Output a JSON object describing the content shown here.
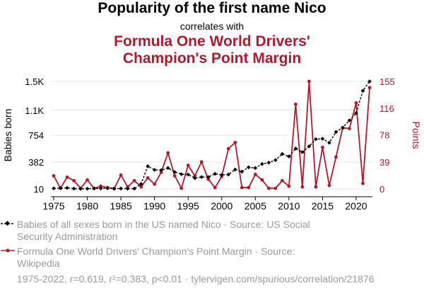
{
  "header": {
    "title": "Popularity of the first name Nico",
    "connector": "correlates with",
    "subtitle_line1": "Formula One World Drivers'",
    "subtitle_line2": "Champion's Point Margin"
  },
  "legend": {
    "series1": "Babies of all sexes born in the US named Nico · Source: US Social Security Administration",
    "series2": "Formula One World Drivers' Champion's Point Margin · Source: Wikipedia"
  },
  "footer": "1975-2022, r=0.619, r²=0.383, p<0.01 · tylervigen.com/spurious/correlation/21876",
  "colors": {
    "series1": "#000000",
    "series2": "#b5182b",
    "grid": "#e4e4e4"
  },
  "chart_data": {
    "type": "line",
    "x": [
      1975,
      1976,
      1977,
      1978,
      1979,
      1980,
      1981,
      1982,
      1983,
      1984,
      1985,
      1986,
      1987,
      1988,
      1989,
      1990,
      1991,
      1992,
      1993,
      1994,
      1995,
      1996,
      1997,
      1998,
      1999,
      2000,
      2001,
      2002,
      2003,
      2004,
      2005,
      2006,
      2007,
      2008,
      2009,
      2010,
      2011,
      2012,
      2013,
      2014,
      2015,
      2016,
      2017,
      2018,
      2019,
      2020,
      2021,
      2022
    ],
    "xticks": [
      1975,
      1980,
      1985,
      1990,
      1995,
      2000,
      2005,
      2010,
      2015,
      2020
    ],
    "left_axis": {
      "label": "Babies born",
      "range": [
        10,
        1500
      ],
      "ticks": [
        10,
        382,
        754,
        1100,
        1500
      ],
      "tick_labels": [
        "10",
        "382",
        "754",
        "1.1K",
        "1.5K"
      ]
    },
    "right_axis": {
      "label": "Points",
      "range": [
        0,
        155
      ],
      "ticks": [
        0,
        39,
        78,
        116,
        155
      ],
      "tick_labels": [
        "0",
        "39",
        "78",
        "116",
        "155"
      ]
    },
    "grid": true,
    "series": [
      {
        "name": "Babies of all sexes born in the US named Nico",
        "axis": "left",
        "style": "dashed, diamond markers",
        "values": [
          18,
          22,
          25,
          15,
          12,
          14,
          16,
          18,
          20,
          15,
          16,
          14,
          15,
          80,
          325,
          275,
          270,
          300,
          245,
          215,
          210,
          160,
          175,
          175,
          220,
          205,
          210,
          280,
          250,
          310,
          300,
          355,
          375,
          410,
          495,
          460,
          570,
          520,
          600,
          700,
          705,
          650,
          800,
          860,
          960,
          1060,
          1370,
          1500
        ]
      },
      {
        "name": "Formula One World Drivers' Champion's Point Margin",
        "axis": "right",
        "style": "solid, round markers",
        "values": [
          19,
          1,
          17,
          12,
          1,
          13,
          1,
          4,
          2,
          0.5,
          20,
          3,
          12,
          3,
          16,
          7,
          24,
          52,
          19,
          1,
          34,
          19,
          39,
          14,
          2,
          18,
          58,
          67,
          2,
          2,
          21,
          13,
          1,
          1,
          12,
          4,
          122,
          3,
          155,
          3,
          60,
          5,
          46,
          88,
          87,
          124,
          8,
          146
        ]
      }
    ]
  }
}
